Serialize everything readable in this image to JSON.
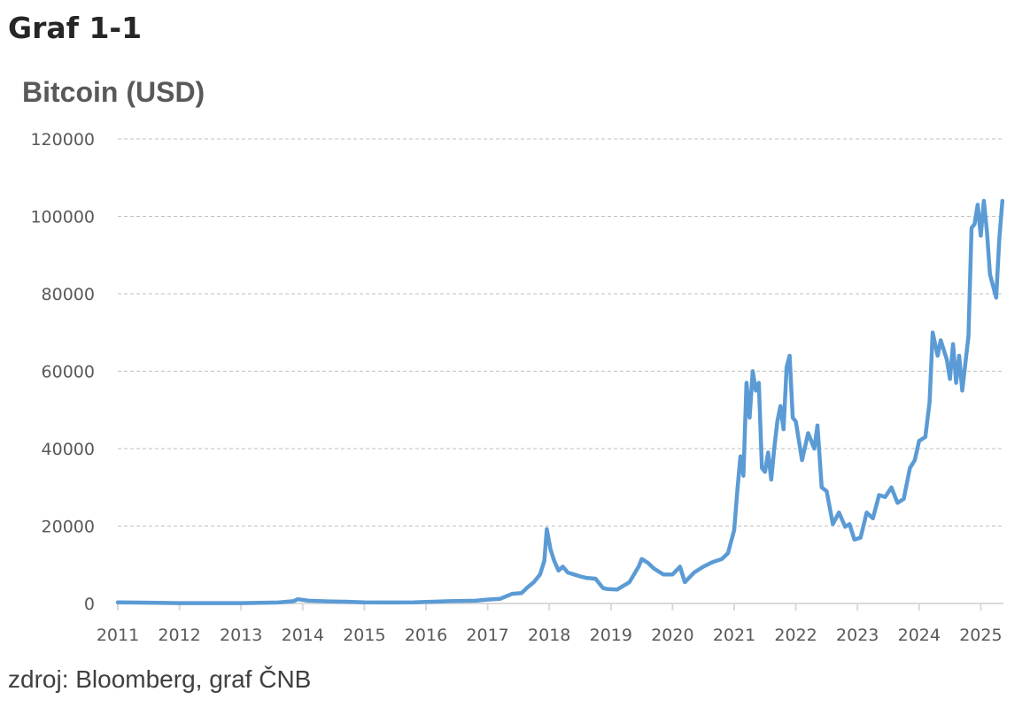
{
  "figure": {
    "label": "Graf 1-1",
    "title": "Bitcoin (USD)",
    "source": "zdroj: Bloomberg, graf ČNB"
  },
  "colors": {
    "series": "#5B9BD5",
    "grid": "#BFBFBF",
    "axis": "#D9D9D9",
    "text": "#595959"
  },
  "chart_data": {
    "type": "line",
    "title": "Bitcoin (USD)",
    "xlabel": "",
    "ylabel": "",
    "ylim": [
      0,
      120000
    ],
    "xlim": [
      2011,
      2025.37
    ],
    "grid": "horizontal dashed",
    "legend": "none",
    "yticks": [
      0,
      20000,
      40000,
      60000,
      80000,
      100000,
      120000
    ],
    "xticks": [
      "2011",
      "2012",
      "2013",
      "2014",
      "2015",
      "2016",
      "2017",
      "2018",
      "2019",
      "2020",
      "2021",
      "2022",
      "2023",
      "2024",
      "2025"
    ],
    "series": [
      {
        "name": "Bitcoin (USD)",
        "x": [
          2011.0,
          2011.5,
          2012.0,
          2012.5,
          2013.0,
          2013.3,
          2013.6,
          2013.85,
          2013.92,
          2014.1,
          2014.4,
          2014.7,
          2015.0,
          2015.4,
          2015.8,
          2016.0,
          2016.4,
          2016.8,
          2017.0,
          2017.2,
          2017.4,
          2017.55,
          2017.65,
          2017.75,
          2017.85,
          2017.92,
          2017.96,
          2018.02,
          2018.08,
          2018.15,
          2018.22,
          2018.3,
          2018.4,
          2018.5,
          2018.6,
          2018.75,
          2018.87,
          2018.95,
          2019.1,
          2019.3,
          2019.45,
          2019.5,
          2019.6,
          2019.7,
          2019.85,
          2020.0,
          2020.12,
          2020.2,
          2020.35,
          2020.5,
          2020.65,
          2020.8,
          2020.9,
          2021.0,
          2021.05,
          2021.1,
          2021.15,
          2021.2,
          2021.25,
          2021.3,
          2021.35,
          2021.4,
          2021.45,
          2021.5,
          2021.55,
          2021.6,
          2021.65,
          2021.7,
          2021.75,
          2021.8,
          2021.85,
          2021.9,
          2021.95,
          2022.0,
          2022.05,
          2022.1,
          2022.2,
          2022.3,
          2022.35,
          2022.42,
          2022.5,
          2022.6,
          2022.7,
          2022.8,
          2022.87,
          2022.95,
          2023.05,
          2023.15,
          2023.25,
          2023.35,
          2023.45,
          2023.55,
          2023.65,
          2023.75,
          2023.85,
          2023.93,
          2024.0,
          2024.1,
          2024.17,
          2024.22,
          2024.3,
          2024.35,
          2024.45,
          2024.5,
          2024.55,
          2024.6,
          2024.65,
          2024.7,
          2024.75,
          2024.8,
          2024.85,
          2024.9,
          2024.95,
          2025.0,
          2025.05,
          2025.1,
          2025.15,
          2025.2,
          2025.25,
          2025.3,
          2025.35
        ],
        "values": [
          300,
          200,
          100,
          100,
          100,
          150,
          250,
          600,
          1100,
          700,
          550,
          450,
          300,
          250,
          300,
          420,
          600,
          700,
          1000,
          1200,
          2500,
          2700,
          4200,
          5500,
          7500,
          11000,
          19200,
          14000,
          11000,
          8500,
          9500,
          8000,
          7500,
          7000,
          6600,
          6400,
          4000,
          3700,
          3600,
          5500,
          9500,
          11500,
          10500,
          9000,
          7500,
          7500,
          9500,
          5500,
          8000,
          9500,
          10700,
          11500,
          13000,
          19000,
          29000,
          38000,
          33000,
          57000,
          48000,
          60000,
          55000,
          57000,
          35000,
          34000,
          39000,
          32000,
          40000,
          47000,
          51000,
          45000,
          61000,
          64000,
          48000,
          47000,
          42000,
          37000,
          44000,
          40000,
          46000,
          30000,
          29000,
          20500,
          23500,
          19800,
          20500,
          16500,
          17000,
          23500,
          22000,
          28000,
          27500,
          30000,
          26000,
          27000,
          35000,
          37000,
          42000,
          43000,
          52000,
          70000,
          64000,
          68000,
          63000,
          58000,
          67000,
          57000,
          64000,
          55000,
          62000,
          69000,
          97000,
          98000,
          103000,
          95000,
          104000,
          96000,
          85000,
          82000,
          79000,
          94000,
          104000
        ]
      }
    ]
  }
}
